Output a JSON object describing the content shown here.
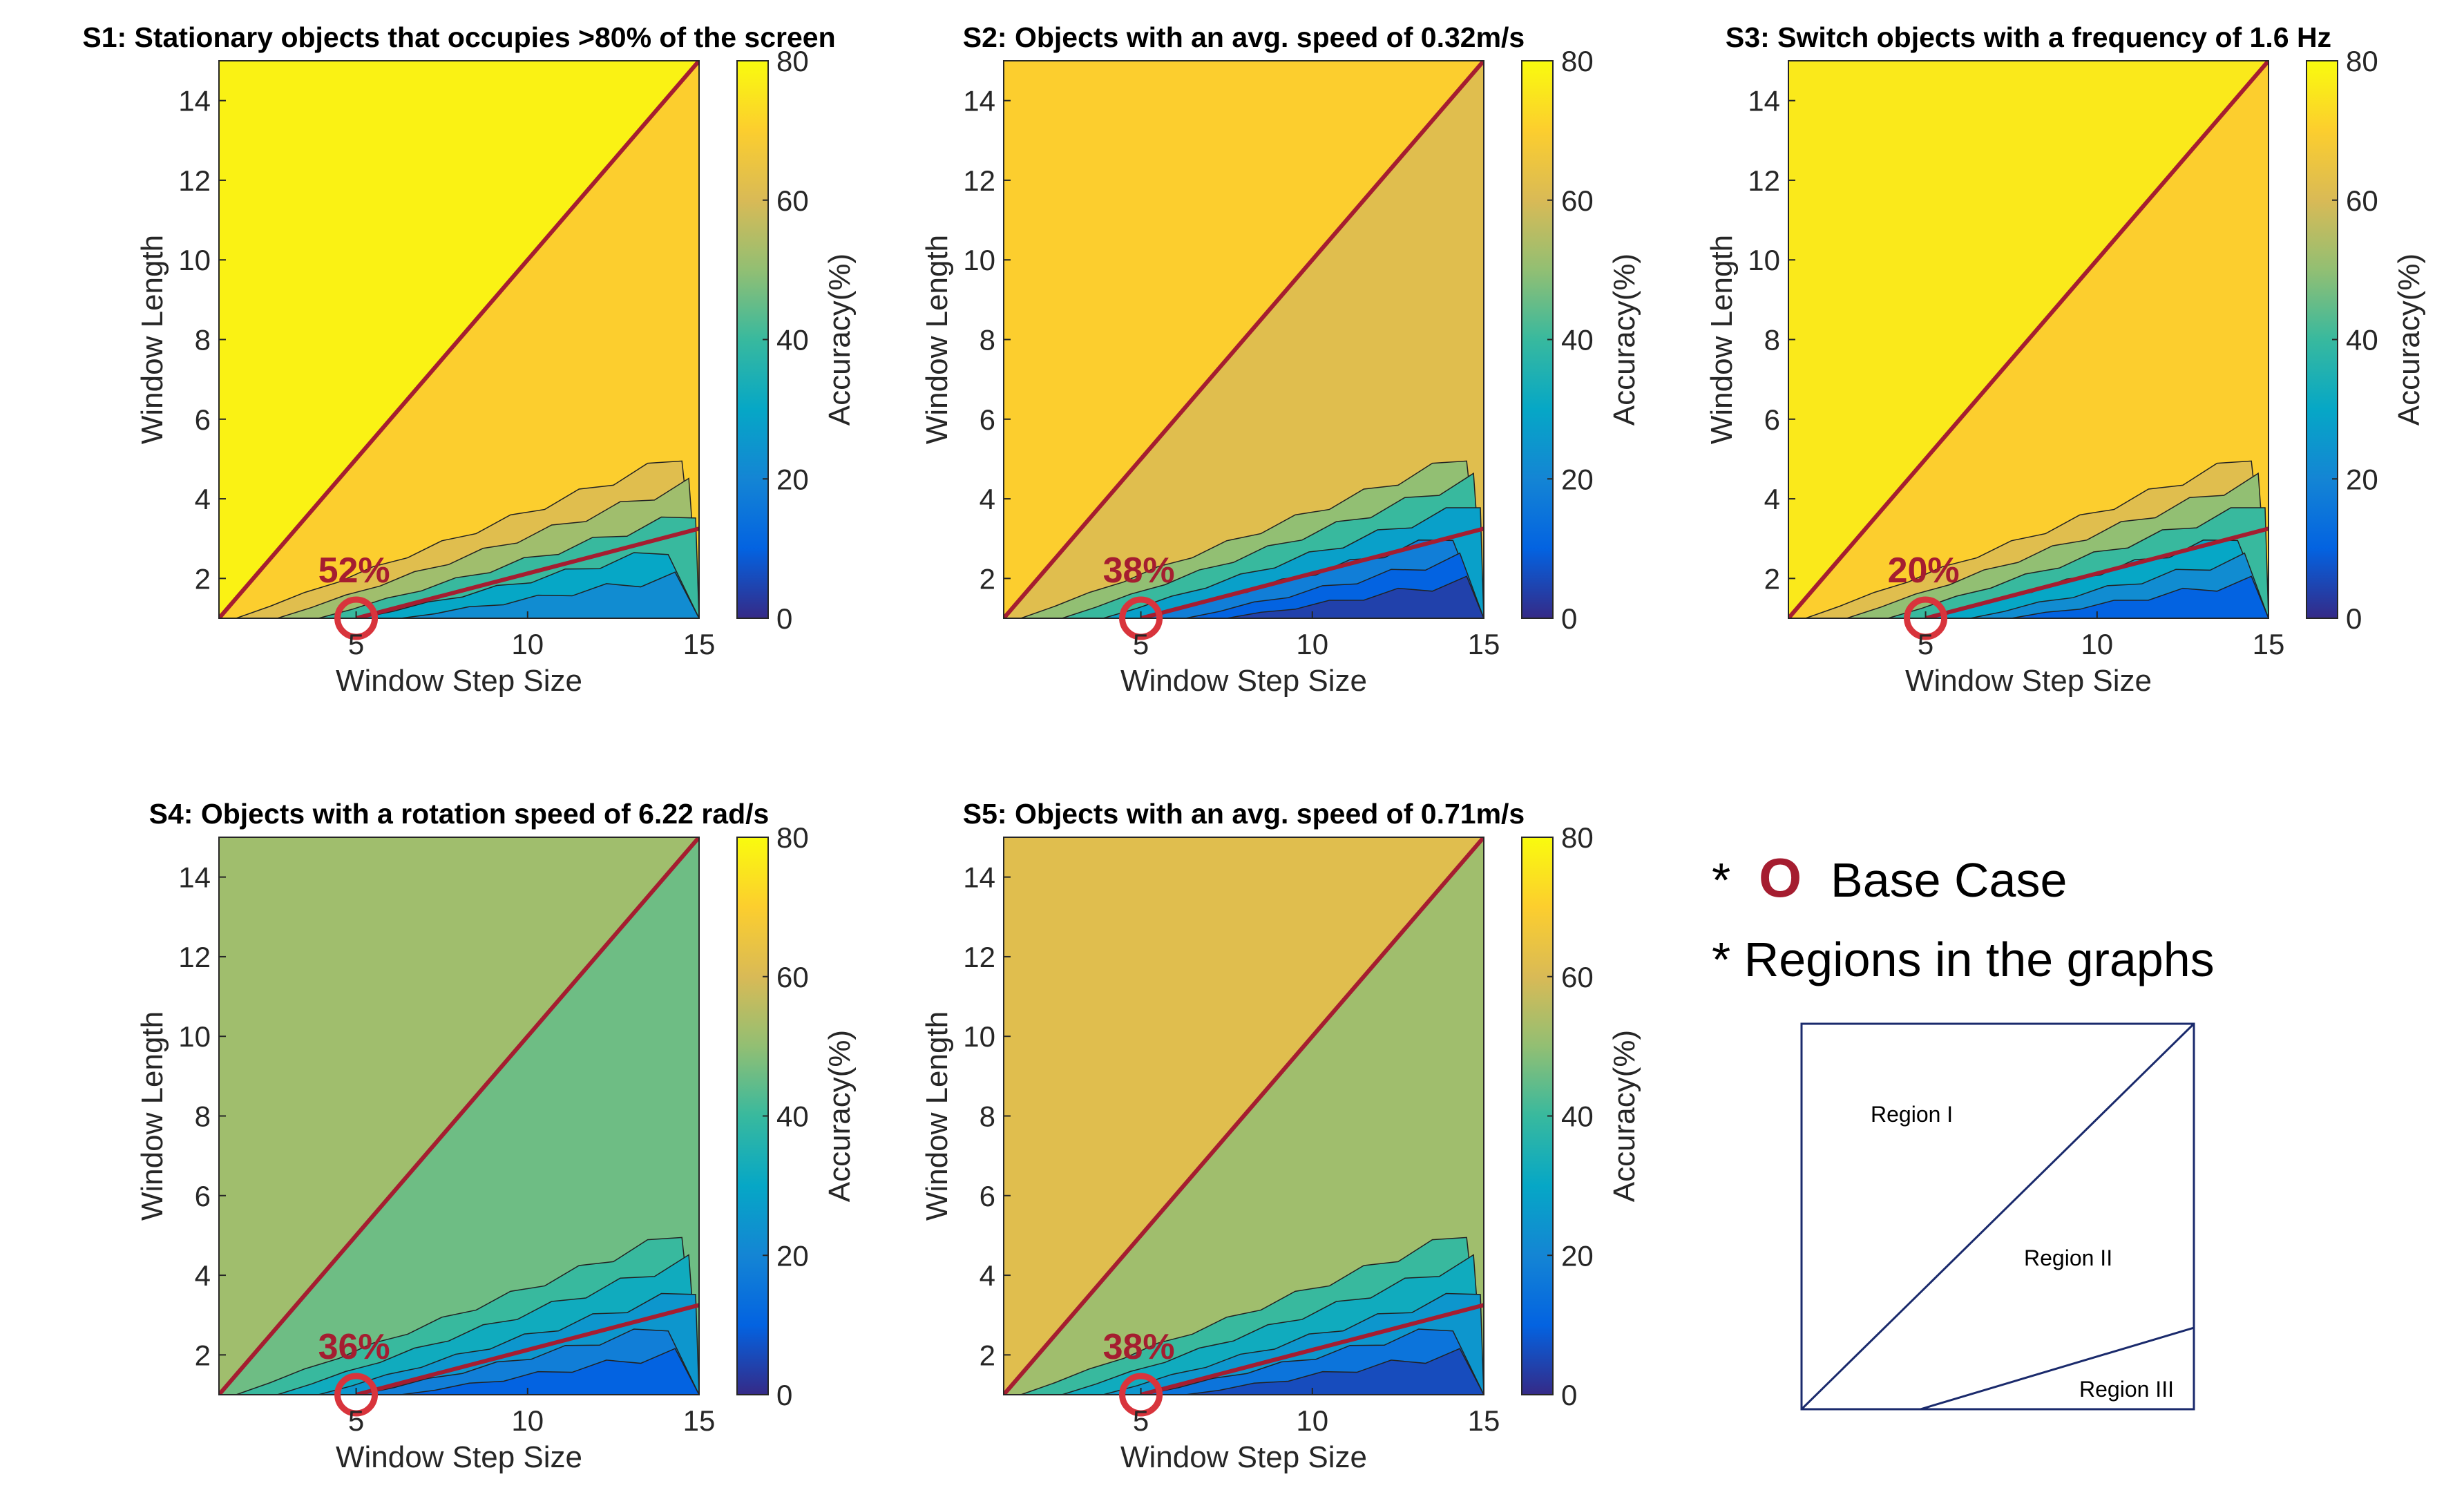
{
  "chart_data": [
    {
      "type": "heatmap",
      "id": "S1",
      "title": "S1: Stationary objects that occupies >80% of the screen",
      "xlabel": "Window Step Size",
      "ylabel": "Window Length",
      "colorbar_label": "Accuracy(%)",
      "xlim": [
        1,
        15
      ],
      "ylim": [
        1,
        15
      ],
      "clim": [
        0,
        80
      ],
      "xticks": [
        5,
        10,
        15
      ],
      "yticks": [
        2,
        4,
        6,
        8,
        10,
        12,
        14
      ],
      "cticks": [
        0,
        20,
        40,
        60,
        80
      ],
      "colormap": "parula",
      "region1_accuracy": 78,
      "region2_accuracy": 70,
      "bottom_levels": [
        62,
        52,
        40,
        30,
        22
      ],
      "base_case": {
        "x": 5,
        "y": 1,
        "label": "52%"
      },
      "diagonal": [
        [
          1,
          1
        ],
        [
          15,
          15
        ]
      ],
      "region3_line": [
        [
          5,
          1
        ],
        [
          15,
          3.25
        ]
      ]
    },
    {
      "type": "heatmap",
      "id": "S2",
      "title": "S2: Objects with an avg. speed of 0.32m/s",
      "xlabel": "Window Step Size",
      "ylabel": "Window Length",
      "colorbar_label": "Accuracy(%)",
      "xlim": [
        1,
        15
      ],
      "ylim": [
        1,
        15
      ],
      "clim": [
        0,
        80
      ],
      "xticks": [
        5,
        10,
        15
      ],
      "yticks": [
        2,
        4,
        6,
        8,
        10,
        12,
        14
      ],
      "cticks": [
        0,
        20,
        40,
        60,
        80
      ],
      "colormap": "parula",
      "region1_accuracy": 70,
      "region2_accuracy": 62,
      "bottom_levels": [
        50,
        40,
        28,
        18,
        10,
        4
      ],
      "base_case": {
        "x": 5,
        "y": 1,
        "label": "38%"
      },
      "diagonal": [
        [
          1,
          1
        ],
        [
          15,
          15
        ]
      ],
      "region3_line": [
        [
          5,
          1
        ],
        [
          15,
          3.25
        ]
      ]
    },
    {
      "type": "heatmap",
      "id": "S3",
      "title": "S3: Switch objects with a frequency of 1.6 Hz",
      "xlabel": "Window Step Size",
      "ylabel": "Window Length",
      "colorbar_label": "Accuracy(%)",
      "xlim": [
        1,
        15
      ],
      "ylim": [
        1,
        15
      ],
      "clim": [
        0,
        80
      ],
      "xticks": [
        5,
        10,
        15
      ],
      "yticks": [
        2,
        4,
        6,
        8,
        10,
        12,
        14
      ],
      "cticks": [
        0,
        20,
        40,
        60,
        80
      ],
      "colormap": "parula",
      "region1_accuracy": 76,
      "region2_accuracy": 70,
      "bottom_levels": [
        62,
        50,
        40,
        30,
        22,
        10
      ],
      "base_case": {
        "x": 5,
        "y": 1,
        "label": "20%"
      },
      "diagonal": [
        [
          1,
          1
        ],
        [
          15,
          15
        ]
      ],
      "region3_line": [
        [
          5,
          1
        ],
        [
          15,
          3.25
        ]
      ]
    },
    {
      "type": "heatmap",
      "id": "S4",
      "title": "S4: Objects with a rotation speed of 6.22 rad/s",
      "xlabel": "Window Step Size",
      "ylabel": "Window Length",
      "colorbar_label": "Accuracy(%)",
      "xlim": [
        1,
        15
      ],
      "ylim": [
        1,
        15
      ],
      "clim": [
        0,
        80
      ],
      "xticks": [
        5,
        10,
        15
      ],
      "yticks": [
        2,
        4,
        6,
        8,
        10,
        12,
        14
      ],
      "cticks": [
        0,
        20,
        40,
        60,
        80
      ],
      "colormap": "parula",
      "region1_accuracy": 52,
      "region2_accuracy": 46,
      "bottom_levels": [
        40,
        32,
        25,
        18,
        10
      ],
      "base_case": {
        "x": 5,
        "y": 1,
        "label": "36%"
      },
      "diagonal": [
        [
          1,
          1
        ],
        [
          15,
          15
        ]
      ],
      "region3_line": [
        [
          5,
          1
        ],
        [
          15,
          3.25
        ]
      ]
    },
    {
      "type": "heatmap",
      "id": "S5",
      "title": "S5: Objects with an avg. speed of 0.71m/s",
      "xlabel": "Window Step Size",
      "ylabel": "Window Length",
      "colorbar_label": "Accuracy(%)",
      "xlim": [
        1,
        15
      ],
      "ylim": [
        1,
        15
      ],
      "clim": [
        0,
        80
      ],
      "xticks": [
        5,
        10,
        15
      ],
      "yticks": [
        2,
        4,
        6,
        8,
        10,
        12,
        14
      ],
      "cticks": [
        0,
        20,
        40,
        60,
        80
      ],
      "colormap": "parula",
      "region1_accuracy": 62,
      "region2_accuracy": 52,
      "bottom_levels": [
        40,
        32,
        25,
        15,
        6
      ],
      "base_case": {
        "x": 5,
        "y": 1,
        "label": "38%"
      },
      "diagonal": [
        [
          1,
          1
        ],
        [
          15,
          15
        ]
      ],
      "region3_line": [
        [
          5,
          1
        ],
        [
          15,
          3.25
        ]
      ]
    }
  ],
  "legend": {
    "asterisk": "*",
    "base_case_symbol": "O",
    "base_case_label": "Base Case",
    "regions_label": "* Regions in the graphs",
    "regions": [
      "Region I",
      "Region II",
      "Region III"
    ]
  },
  "colors": {
    "reference_lines": "#a51d30",
    "contour_lines": "#222222"
  }
}
